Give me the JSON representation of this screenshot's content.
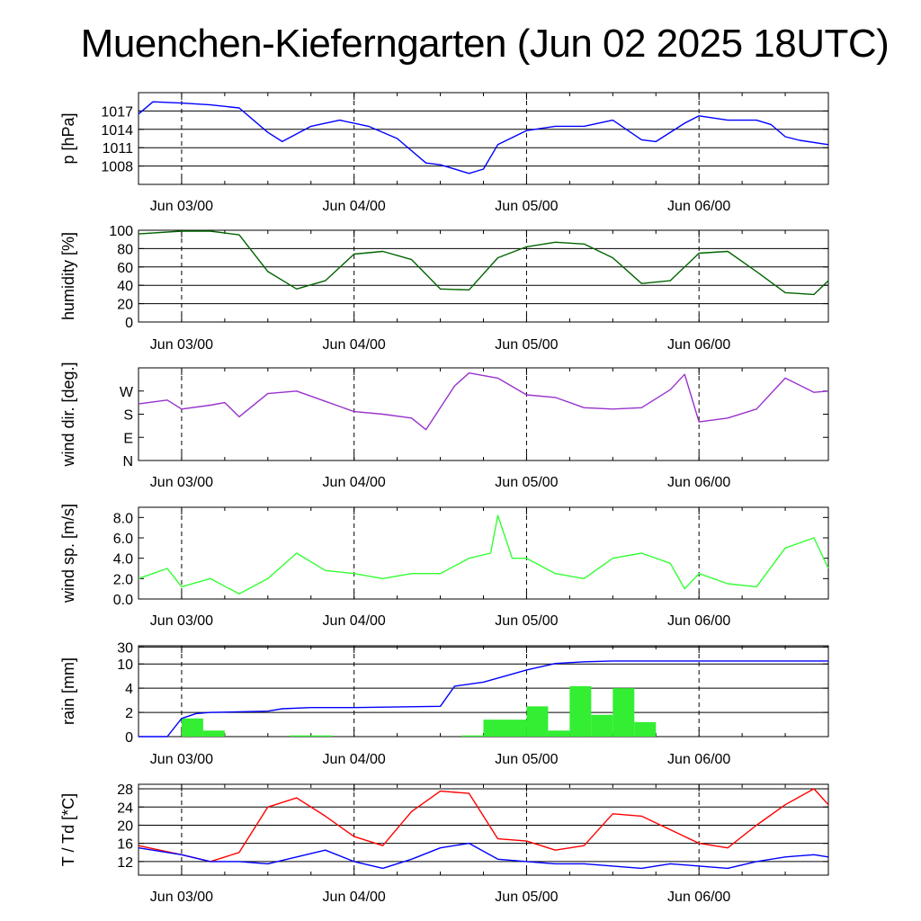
{
  "title": "Muenchen-Kieferngarten (Jun 02 2025 18UTC)",
  "x_axis": {
    "start": "2025-06-02 18:00 UTC",
    "end": "2025-06-06 18:00 UTC",
    "date_ticks": [
      "Jun 03/00",
      "Jun 04/00",
      "Jun 05/00",
      "Jun 06/00"
    ]
  },
  "chart_data": [
    {
      "type": "line",
      "ylabel": "p [hPa]",
      "ylim": [
        1005,
        1020
      ],
      "yticks": [
        1008,
        1011,
        1014,
        1017
      ],
      "grid": true,
      "series": [
        {
          "color": "#0000ff",
          "x": [
            "2025-06-02 18:00",
            "2025-06-02 20:00",
            "2025-06-03 00:00",
            "2025-06-03 04:00",
            "2025-06-03 08:00",
            "2025-06-03 12:00",
            "2025-06-03 14:00",
            "2025-06-03 18:00",
            "2025-06-03 22:00",
            "2025-06-04 02:00",
            "2025-06-04 06:00",
            "2025-06-04 10:00",
            "2025-06-04 12:00",
            "2025-06-04 16:00",
            "2025-06-04 18:00",
            "2025-06-04 20:00",
            "2025-06-05 00:00",
            "2025-06-05 04:00",
            "2025-06-05 08:00",
            "2025-06-05 12:00",
            "2025-06-05 16:00",
            "2025-06-05 18:00",
            "2025-06-05 22:00",
            "2025-06-06 00:00",
            "2025-06-06 04:00",
            "2025-06-06 08:00",
            "2025-06-06 10:00",
            "2025-06-06 12:00",
            "2025-06-06 14:00",
            "2025-06-06 18:00"
          ],
          "values": [
            1016.5,
            1018.5,
            1018.3,
            1018.0,
            1017.5,
            1013.5,
            1012.0,
            1014.5,
            1015.5,
            1014.5,
            1012.5,
            1008.5,
            1008.2,
            1006.8,
            1007.5,
            1011.5,
            1013.8,
            1014.5,
            1014.5,
            1015.5,
            1012.3,
            1012.0,
            1015.0,
            1016.2,
            1015.5,
            1015.5,
            1014.8,
            1012.8,
            1012.2,
            1011.5
          ]
        }
      ]
    },
    {
      "type": "line",
      "ylabel": "humidity [%]",
      "ylim": [
        0,
        100
      ],
      "yticks": [
        0,
        20,
        40,
        60,
        80,
        100
      ],
      "grid": true,
      "series": [
        {
          "color": "#006400",
          "x": [
            "2025-06-02 18:00",
            "2025-06-03 00:00",
            "2025-06-03 04:00",
            "2025-06-03 08:00",
            "2025-06-03 12:00",
            "2025-06-03 16:00",
            "2025-06-03 20:00",
            "2025-06-04 00:00",
            "2025-06-04 04:00",
            "2025-06-04 08:00",
            "2025-06-04 12:00",
            "2025-06-04 16:00",
            "2025-06-04 20:00",
            "2025-06-05 00:00",
            "2025-06-05 04:00",
            "2025-06-05 08:00",
            "2025-06-05 12:00",
            "2025-06-05 16:00",
            "2025-06-05 20:00",
            "2025-06-06 00:00",
            "2025-06-06 04:00",
            "2025-06-06 08:00",
            "2025-06-06 12:00",
            "2025-06-06 16:00",
            "2025-06-06 18:00"
          ],
          "values": [
            96,
            99,
            99,
            95,
            55,
            36,
            45,
            74,
            77,
            68,
            36,
            35,
            70,
            82,
            87,
            85,
            70,
            42,
            45,
            75,
            77,
            55,
            32,
            30,
            45
          ]
        }
      ]
    },
    {
      "type": "line",
      "ylabel": "wind dir. [deg.]",
      "ylim": [
        0,
        360
      ],
      "yticks": [
        0,
        90,
        180,
        270
      ],
      "ytick_labels": [
        "N",
        "E",
        "S",
        "W"
      ],
      "grid": false,
      "series": [
        {
          "color": "#9932cc",
          "x": [
            "2025-06-02 18:00",
            "2025-06-02 22:00",
            "2025-06-03 00:00",
            "2025-06-03 04:00",
            "2025-06-03 06:00",
            "2025-06-03 08:00",
            "2025-06-03 12:00",
            "2025-06-03 16:00",
            "2025-06-03 20:00",
            "2025-06-04 00:00",
            "2025-06-04 04:00",
            "2025-06-04 08:00",
            "2025-06-04 10:00",
            "2025-06-04 14:00",
            "2025-06-04 16:00",
            "2025-06-04 20:00",
            "2025-06-05 00:00",
            "2025-06-05 04:00",
            "2025-06-05 08:00",
            "2025-06-05 12:00",
            "2025-06-05 16:00",
            "2025-06-05 20:00",
            "2025-06-05 22:00",
            "2025-06-06 00:00",
            "2025-06-06 04:00",
            "2025-06-06 08:00",
            "2025-06-06 12:00",
            "2025-06-06 16:00",
            "2025-06-06 18:00"
          ],
          "values": [
            220,
            235,
            200,
            215,
            225,
            170,
            260,
            270,
            230,
            190,
            180,
            165,
            120,
            290,
            340,
            320,
            255,
            245,
            205,
            200,
            205,
            275,
            335,
            150,
            165,
            200,
            320,
            265,
            270
          ]
        }
      ]
    },
    {
      "type": "line",
      "ylabel": "wind sp. [m/s]",
      "ylim": [
        0,
        9
      ],
      "yticks": [
        0.0,
        2.0,
        4.0,
        6.0,
        8.0
      ],
      "grid": false,
      "series": [
        {
          "color": "#33ff33",
          "x": [
            "2025-06-02 18:00",
            "2025-06-02 22:00",
            "2025-06-03 00:00",
            "2025-06-03 04:00",
            "2025-06-03 08:00",
            "2025-06-03 12:00",
            "2025-06-03 16:00",
            "2025-06-03 20:00",
            "2025-06-04 00:00",
            "2025-06-04 04:00",
            "2025-06-04 08:00",
            "2025-06-04 12:00",
            "2025-06-04 16:00",
            "2025-06-04 19:00",
            "2025-06-04 20:00",
            "2025-06-04 22:00",
            "2025-06-05 00:00",
            "2025-06-05 04:00",
            "2025-06-05 08:00",
            "2025-06-05 12:00",
            "2025-06-05 16:00",
            "2025-06-05 20:00",
            "2025-06-05 22:00",
            "2025-06-06 00:00",
            "2025-06-06 04:00",
            "2025-06-06 08:00",
            "2025-06-06 12:00",
            "2025-06-06 16:00",
            "2025-06-06 18:00"
          ],
          "values": [
            2.0,
            3.0,
            1.2,
            2.0,
            0.5,
            2.0,
            4.5,
            2.8,
            2.5,
            2.0,
            2.5,
            2.5,
            4.0,
            4.5,
            8.2,
            4.0,
            4.0,
            2.5,
            2.0,
            4.0,
            4.5,
            3.5,
            1.0,
            2.5,
            1.5,
            1.2,
            5.0,
            6.0,
            3.0
          ]
        }
      ]
    },
    {
      "type": "bar",
      "ylabel": "rain [mm]",
      "ylim": [
        0,
        30
      ],
      "yticks": [
        0,
        2,
        4,
        10,
        30
      ],
      "grid": true,
      "series": [
        {
          "name": "",
          "color": "#33ee33",
          "x": [
            "2025-06-02 18:00",
            "2025-06-02 21:00",
            "2025-06-03 00:00",
            "2025-06-03 03:00",
            "2025-06-03 06:00",
            "2025-06-03 09:00",
            "2025-06-03 12:00",
            "2025-06-03 15:00",
            "2025-06-03 18:00",
            "2025-06-03 21:00",
            "2025-06-04 00:00",
            "2025-06-04 03:00",
            "2025-06-04 06:00",
            "2025-06-04 09:00",
            "2025-06-04 12:00",
            "2025-06-04 15:00",
            "2025-06-04 18:00",
            "2025-06-04 21:00",
            "2025-06-05 00:00",
            "2025-06-05 03:00",
            "2025-06-05 06:00",
            "2025-06-05 09:00",
            "2025-06-05 12:00",
            "2025-06-05 15:00",
            "2025-06-05 18:00",
            "2025-06-05 21:00",
            "2025-06-06 00:00",
            "2025-06-06 03:00",
            "2025-06-06 06:00",
            "2025-06-06 09:00",
            "2025-06-06 12:00",
            "2025-06-06 15:00"
          ],
          "values": [
            0,
            0,
            1.5,
            0.5,
            0,
            0,
            0,
            0.1,
            0.1,
            0,
            0,
            0,
            0,
            0,
            0,
            0.1,
            1.4,
            1.4,
            2.5,
            0.5,
            4.5,
            1.8,
            4.0,
            1.2,
            0,
            0,
            0,
            0,
            0,
            0,
            0,
            0
          ]
        },
        {
          "name": "",
          "type": "line",
          "color": "#0000ff",
          "x": [
            "2025-06-02 18:00",
            "2025-06-02 22:00",
            "2025-06-03 00:00",
            "2025-06-03 02:00",
            "2025-06-03 04:00",
            "2025-06-03 12:00",
            "2025-06-03 14:00",
            "2025-06-03 18:00",
            "2025-06-04 00:00",
            "2025-06-04 12:00",
            "2025-06-04 14:00",
            "2025-06-04 18:00",
            "2025-06-04 22:00",
            "2025-06-05 00:00",
            "2025-06-05 04:00",
            "2025-06-05 08:00",
            "2025-06-05 12:00",
            "2025-06-06 00:00",
            "2025-06-06 18:00"
          ],
          "values": [
            0,
            0,
            1.5,
            1.9,
            2.0,
            2.1,
            2.3,
            2.4,
            2.4,
            2.5,
            4.5,
            5.5,
            7.5,
            8.5,
            10.5,
            12.5,
            13.5,
            13.5,
            13.5
          ]
        }
      ]
    },
    {
      "type": "line",
      "ylabel": "T / Td [*C]",
      "ylim": [
        9,
        29
      ],
      "yticks": [
        12,
        16,
        20,
        24,
        28
      ],
      "grid": true,
      "series": [
        {
          "color": "#ff0000",
          "x": [
            "2025-06-02 18:00",
            "2025-06-03 00:00",
            "2025-06-03 04:00",
            "2025-06-03 08:00",
            "2025-06-03 12:00",
            "2025-06-03 16:00",
            "2025-06-03 20:00",
            "2025-06-04 00:00",
            "2025-06-04 04:00",
            "2025-06-04 08:00",
            "2025-06-04 12:00",
            "2025-06-04 16:00",
            "2025-06-04 20:00",
            "2025-06-05 00:00",
            "2025-06-05 04:00",
            "2025-06-05 08:00",
            "2025-06-05 12:00",
            "2025-06-05 16:00",
            "2025-06-05 20:00",
            "2025-06-06 00:00",
            "2025-06-06 04:00",
            "2025-06-06 08:00",
            "2025-06-06 12:00",
            "2025-06-06 16:00",
            "2025-06-06 18:00"
          ],
          "values": [
            15.5,
            13.5,
            12.0,
            14.0,
            24.0,
            26.0,
            22.0,
            17.5,
            15.5,
            23.0,
            27.5,
            27.0,
            17.0,
            16.5,
            14.5,
            15.5,
            22.5,
            22.0,
            19.0,
            16.0,
            15.0,
            20.0,
            24.5,
            28.0,
            24.5
          ]
        },
        {
          "color": "#0000ff",
          "x": [
            "2025-06-02 18:00",
            "2025-06-03 00:00",
            "2025-06-03 04:00",
            "2025-06-03 08:00",
            "2025-06-03 12:00",
            "2025-06-03 16:00",
            "2025-06-03 20:00",
            "2025-06-04 00:00",
            "2025-06-04 04:00",
            "2025-06-04 08:00",
            "2025-06-04 12:00",
            "2025-06-04 16:00",
            "2025-06-04 20:00",
            "2025-06-05 00:00",
            "2025-06-05 04:00",
            "2025-06-05 08:00",
            "2025-06-05 12:00",
            "2025-06-05 16:00",
            "2025-06-05 20:00",
            "2025-06-06 00:00",
            "2025-06-06 04:00",
            "2025-06-06 08:00",
            "2025-06-06 12:00",
            "2025-06-06 16:00",
            "2025-06-06 18:00"
          ],
          "values": [
            15.0,
            13.5,
            12.0,
            12.0,
            11.5,
            13.0,
            14.5,
            12.0,
            10.5,
            12.5,
            15.0,
            16.0,
            12.5,
            12.0,
            11.5,
            11.5,
            11.0,
            10.5,
            11.5,
            11.0,
            10.5,
            12.0,
            13.0,
            13.5,
            13.0
          ]
        }
      ]
    }
  ]
}
